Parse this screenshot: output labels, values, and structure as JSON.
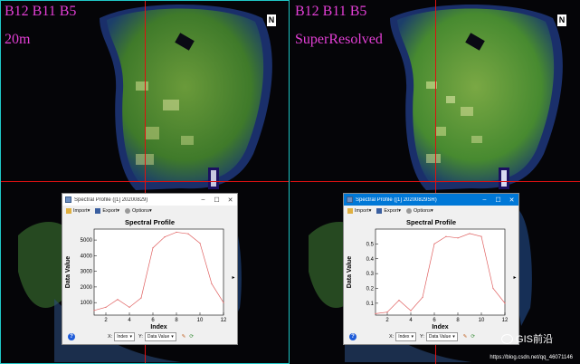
{
  "left_panel": {
    "label_bands": "B12 B11 B5",
    "label_resolution": "20m",
    "north_glyph": "N",
    "window": {
      "title": "Spectral Profile ([1] 20200829)",
      "toolbar": {
        "import": "Import▾",
        "export": "Export▾",
        "options": "Options▾"
      },
      "plot_title": "Spectral Profile",
      "x_axis_label": "Index",
      "y_axis_label": "Data Value",
      "x_selector": "Index",
      "y_selector": "Data Value",
      "x_prefix": "X:",
      "y_prefix": "Y:"
    }
  },
  "right_panel": {
    "label_bands": "B12 B11 B5",
    "label_resolution": "SuperResolved",
    "north_glyph": "N",
    "window": {
      "title": "Spectral Profile ([1] 20200829SR)",
      "toolbar": {
        "import": "Import▾",
        "export": "Export▾",
        "options": "Options▾"
      },
      "plot_title": "Spectral Profile",
      "x_axis_label": "Index",
      "y_axis_label": "Data Value",
      "x_selector": "Index",
      "y_selector": "Data Value",
      "x_prefix": "X:",
      "y_prefix": "Y:"
    }
  },
  "watermark": {
    "wechat_name": "GIS前沿",
    "url": "https://blog.csdn.net/qq_46071146"
  },
  "colors": {
    "label": "#e43fd6",
    "crosshair": "#dd1111",
    "profile_line": "#e06060",
    "frame": "#1fc7c7"
  },
  "chart_data": [
    {
      "type": "line",
      "title": "Spectral Profile",
      "xlabel": "Index",
      "ylabel": "Data Value",
      "x": [
        1,
        2,
        3,
        4,
        5,
        6,
        7,
        8,
        9,
        10,
        11,
        12
      ],
      "values": [
        500,
        700,
        1200,
        700,
        1300,
        4500,
        5200,
        5500,
        5400,
        4800,
        2200,
        1000
      ],
      "xlim": [
        1,
        12
      ],
      "ylim": [
        200,
        5700
      ],
      "xticks": [
        2,
        4,
        6,
        8,
        10,
        12
      ],
      "yticks": [
        1000,
        2000,
        3000,
        4000,
        5000
      ]
    },
    {
      "type": "line",
      "title": "Spectral Profile",
      "xlabel": "Index",
      "ylabel": "Data Value",
      "x": [
        1,
        2,
        3,
        4,
        5,
        6,
        7,
        8,
        9,
        10,
        11,
        12
      ],
      "values": [
        0.03,
        0.04,
        0.12,
        0.05,
        0.14,
        0.5,
        0.55,
        0.54,
        0.57,
        0.55,
        0.2,
        0.1
      ],
      "xlim": [
        1,
        12
      ],
      "ylim": [
        0.02,
        0.6
      ],
      "xticks": [
        2,
        4,
        6,
        8,
        10,
        12
      ],
      "yticks": [
        0.1,
        0.2,
        0.3,
        0.4,
        0.5
      ]
    }
  ]
}
